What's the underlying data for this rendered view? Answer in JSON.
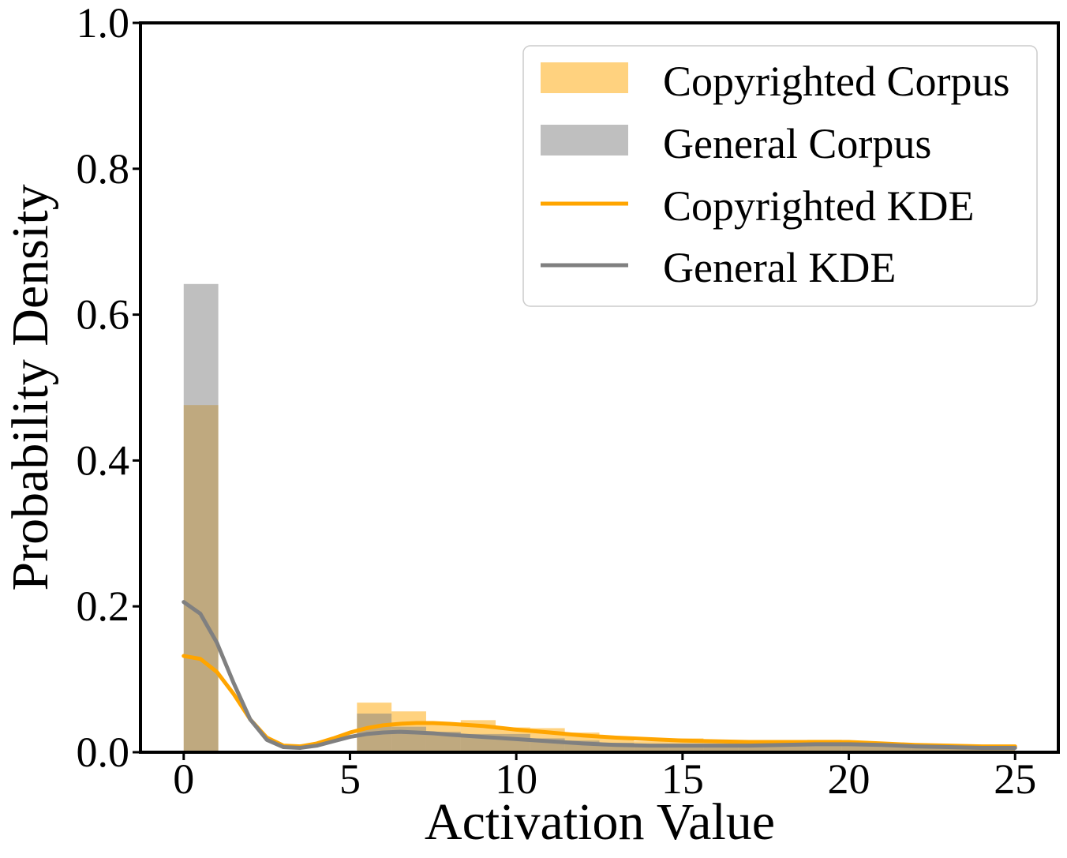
{
  "chart_data": {
    "type": "histogram_kde",
    "title": "",
    "xlabel": "Activation Value",
    "ylabel": "Probability Density",
    "xlim": [
      -1.3,
      26.3
    ],
    "ylim": [
      0.0,
      1.0
    ],
    "x_ticks": [
      0,
      5,
      10,
      15,
      20,
      25
    ],
    "x_tick_labels": [
      "0",
      "5",
      "10",
      "15",
      "20",
      "25"
    ],
    "y_ticks": [
      0.0,
      0.2,
      0.4,
      0.6,
      0.8,
      1.0
    ],
    "y_tick_labels": [
      "0.0",
      "0.2",
      "0.4",
      "0.6",
      "0.8",
      "1.0"
    ],
    "grid": false,
    "legend_position": "top-right",
    "bin_edges": [
      0,
      1.04,
      2.08,
      3.13,
      4.17,
      5.21,
      6.25,
      7.29,
      8.33,
      9.38,
      10.42,
      11.46,
      12.5,
      13.54,
      14.58,
      15.63,
      16.67,
      17.71,
      18.75,
      19.79,
      20.83,
      21.88,
      22.92,
      23.96,
      25.0
    ],
    "series": [
      {
        "name": "Copyrighted Corpus",
        "kind": "histogram",
        "color": "#ffa500",
        "opacity": 0.5,
        "values": [
          0.476,
          0.0,
          0.0,
          0.0,
          0.0,
          0.068,
          0.056,
          0.04,
          0.044,
          0.034,
          0.033,
          0.027,
          0.019,
          0.015,
          0.019,
          0.016,
          0.015,
          0.015,
          0.017,
          0.015,
          0.013,
          0.011,
          0.009,
          0.008
        ]
      },
      {
        "name": "General Corpus",
        "kind": "histogram",
        "color": "#808080",
        "opacity": 0.5,
        "values": [
          0.642,
          0.0,
          0.0,
          0.0,
          0.0,
          0.053,
          0.035,
          0.028,
          0.025,
          0.025,
          0.019,
          0.016,
          0.013,
          0.01,
          0.01,
          0.009,
          0.009,
          0.009,
          0.01,
          0.01,
          0.009,
          0.007,
          0.006,
          0.005
        ]
      },
      {
        "name": "Copyrighted KDE",
        "kind": "line",
        "color": "#ffa500",
        "x": [
          0,
          0.5,
          1,
          1.5,
          2,
          2.5,
          3,
          3.5,
          4,
          4.5,
          5,
          5.5,
          6,
          6.5,
          7,
          7.5,
          8,
          9,
          10,
          11,
          12,
          13,
          14,
          15,
          16,
          17,
          18,
          19,
          20,
          21,
          22,
          23,
          24,
          25
        ],
        "y": [
          0.132,
          0.128,
          0.11,
          0.08,
          0.045,
          0.02,
          0.009,
          0.008,
          0.012,
          0.019,
          0.027,
          0.033,
          0.037,
          0.039,
          0.04,
          0.04,
          0.039,
          0.036,
          0.031,
          0.027,
          0.023,
          0.02,
          0.018,
          0.016,
          0.015,
          0.014,
          0.014,
          0.014,
          0.014,
          0.012,
          0.01,
          0.009,
          0.008,
          0.008
        ]
      },
      {
        "name": "General KDE",
        "kind": "line",
        "color": "#808080",
        "x": [
          0,
          0.5,
          1,
          1.5,
          2,
          2.5,
          3,
          3.5,
          4,
          4.5,
          5,
          5.5,
          6,
          6.5,
          7,
          7.5,
          8,
          9,
          10,
          11,
          12,
          13,
          14,
          15,
          16,
          17,
          18,
          19,
          20,
          21,
          22,
          23,
          24,
          25
        ],
        "y": [
          0.206,
          0.19,
          0.15,
          0.095,
          0.045,
          0.017,
          0.007,
          0.006,
          0.009,
          0.015,
          0.021,
          0.025,
          0.027,
          0.028,
          0.027,
          0.026,
          0.024,
          0.021,
          0.018,
          0.015,
          0.012,
          0.01,
          0.009,
          0.009,
          0.009,
          0.009,
          0.01,
          0.011,
          0.011,
          0.01,
          0.008,
          0.007,
          0.006,
          0.006
        ]
      }
    ]
  }
}
